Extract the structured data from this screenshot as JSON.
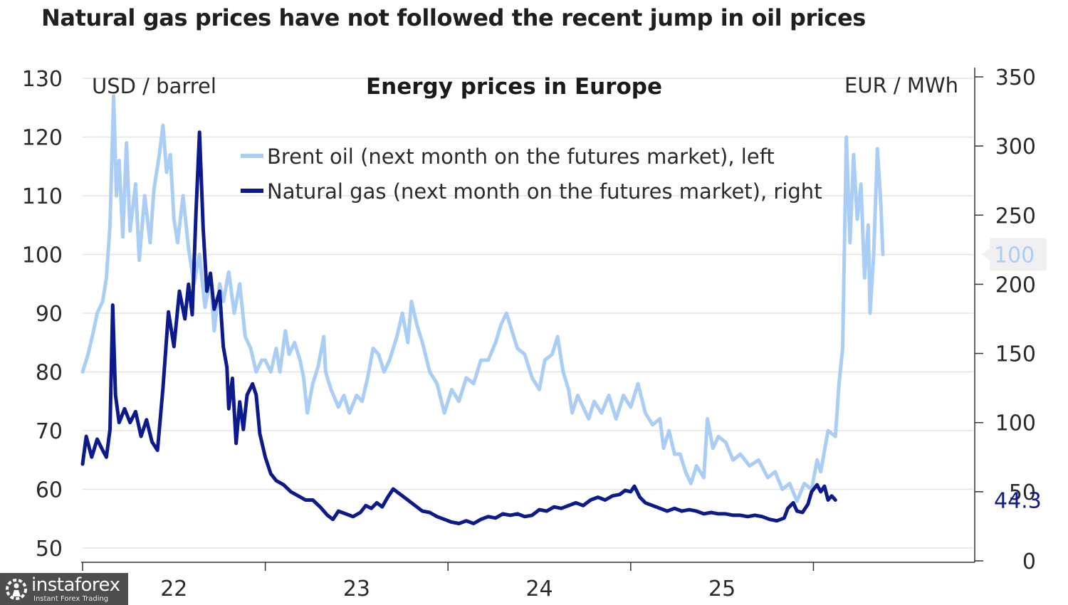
{
  "headline": "Natural gas prices have not followed the recent jump in oil prices",
  "chart_data": {
    "type": "line",
    "title": "Energy prices in Europe",
    "left_axis": {
      "label": "USD / barrel",
      "range": [
        50,
        130
      ],
      "ticks": [
        50,
        60,
        70,
        80,
        90,
        100,
        110,
        120,
        130
      ]
    },
    "right_axis": {
      "label": "EUR / MWh",
      "range": [
        0,
        350
      ],
      "ticks": [
        0,
        50,
        100,
        150,
        200,
        250,
        300,
        350
      ]
    },
    "x_axis": {
      "range": [
        2021.0,
        2025.875
      ],
      "ticks": [
        2021.0,
        2022.0,
        2023.0,
        2024.0,
        2025.0
      ],
      "labels": [
        {
          "x": 2021.5,
          "text": "22"
        },
        {
          "x": 2022.5,
          "text": "23"
        },
        {
          "x": 2023.5,
          "text": "24"
        },
        {
          "x": 2024.5,
          "text": "25"
        }
      ]
    },
    "gridlines": true,
    "legend_position": "top-center",
    "series": [
      {
        "name": "Brent oil (next month on the futures market), left",
        "axis": "left",
        "color": "#a9cdf5",
        "end_label": "100",
        "points": [
          [
            2021.0,
            80
          ],
          [
            2021.03,
            83
          ],
          [
            2021.06,
            87
          ],
          [
            2021.08,
            90
          ],
          [
            2021.11,
            92
          ],
          [
            2021.13,
            96
          ],
          [
            2021.15,
            105
          ],
          [
            2021.17,
            127
          ],
          [
            2021.185,
            110
          ],
          [
            2021.2,
            116
          ],
          [
            2021.22,
            103
          ],
          [
            2021.24,
            119
          ],
          [
            2021.26,
            104
          ],
          [
            2021.29,
            112
          ],
          [
            2021.31,
            99
          ],
          [
            2021.34,
            110
          ],
          [
            2021.37,
            102
          ],
          [
            2021.39,
            111
          ],
          [
            2021.42,
            117
          ],
          [
            2021.44,
            122
          ],
          [
            2021.46,
            114
          ],
          [
            2021.48,
            117
          ],
          [
            2021.5,
            106
          ],
          [
            2021.52,
            102
          ],
          [
            2021.55,
            110
          ],
          [
            2021.58,
            101
          ],
          [
            2021.61,
            95
          ],
          [
            2021.64,
            100
          ],
          [
            2021.67,
            91
          ],
          [
            2021.7,
            96
          ],
          [
            2021.72,
            87
          ],
          [
            2021.75,
            95
          ],
          [
            2021.77,
            92
          ],
          [
            2021.8,
            97
          ],
          [
            2021.83,
            90
          ],
          [
            2021.86,
            95
          ],
          [
            2021.89,
            86
          ],
          [
            2021.92,
            84
          ],
          [
            2021.95,
            80
          ],
          [
            2021.98,
            82
          ],
          [
            2022.0,
            82
          ],
          [
            2022.03,
            80
          ],
          [
            2022.06,
            84
          ],
          [
            2022.08,
            80
          ],
          [
            2022.11,
            87
          ],
          [
            2022.13,
            83
          ],
          [
            2022.16,
            85
          ],
          [
            2022.19,
            82
          ],
          [
            2022.21,
            79
          ],
          [
            2022.23,
            73
          ],
          [
            2022.26,
            78
          ],
          [
            2022.29,
            81
          ],
          [
            2022.32,
            86
          ],
          [
            2022.33,
            80
          ],
          [
            2022.36,
            77
          ],
          [
            2022.4,
            74
          ],
          [
            2022.43,
            76
          ],
          [
            2022.46,
            73
          ],
          [
            2022.5,
            76
          ],
          [
            2022.53,
            75
          ],
          [
            2022.56,
            79
          ],
          [
            2022.59,
            84
          ],
          [
            2022.62,
            83
          ],
          [
            2022.65,
            80
          ],
          [
            2022.68,
            82
          ],
          [
            2022.72,
            86
          ],
          [
            2022.75,
            90
          ],
          [
            2022.78,
            85
          ],
          [
            2022.8,
            92
          ],
          [
            2022.83,
            88
          ],
          [
            2022.86,
            85
          ],
          [
            2022.9,
            80
          ],
          [
            2022.94,
            78
          ],
          [
            2022.98,
            73
          ],
          [
            2023.02,
            77
          ],
          [
            2023.06,
            75
          ],
          [
            2023.1,
            79
          ],
          [
            2023.14,
            78
          ],
          [
            2023.18,
            82
          ],
          [
            2023.22,
            82
          ],
          [
            2023.26,
            85
          ],
          [
            2023.29,
            88
          ],
          [
            2023.32,
            90
          ],
          [
            2023.35,
            87
          ],
          [
            2023.38,
            84
          ],
          [
            2023.42,
            83
          ],
          [
            2023.46,
            79
          ],
          [
            2023.5,
            77
          ],
          [
            2023.53,
            82
          ],
          [
            2023.57,
            83
          ],
          [
            2023.6,
            86
          ],
          [
            2023.63,
            80
          ],
          [
            2023.66,
            77
          ],
          [
            2023.68,
            73
          ],
          [
            2023.71,
            76
          ],
          [
            2023.74,
            74
          ],
          [
            2023.77,
            72
          ],
          [
            2023.8,
            75
          ],
          [
            2023.84,
            73
          ],
          [
            2023.88,
            76
          ],
          [
            2023.92,
            72
          ],
          [
            2023.96,
            76
          ],
          [
            2024.0,
            74
          ],
          [
            2024.04,
            78
          ],
          [
            2024.08,
            73
          ],
          [
            2024.12,
            71
          ],
          [
            2024.16,
            72
          ],
          [
            2024.18,
            67
          ],
          [
            2024.21,
            70
          ],
          [
            2024.24,
            66
          ],
          [
            2024.27,
            66
          ],
          [
            2024.3,
            63
          ],
          [
            2024.33,
            61
          ],
          [
            2024.36,
            64
          ],
          [
            2024.4,
            62
          ],
          [
            2024.42,
            72
          ],
          [
            2024.45,
            67
          ],
          [
            2024.48,
            69
          ],
          [
            2024.52,
            68
          ],
          [
            2024.56,
            65
          ],
          [
            2024.6,
            66
          ],
          [
            2024.65,
            64
          ],
          [
            2024.7,
            65
          ],
          [
            2024.75,
            62
          ],
          [
            2024.79,
            63
          ],
          [
            2024.83,
            60
          ],
          [
            2024.87,
            61
          ],
          [
            2024.91,
            58
          ],
          [
            2024.95,
            61
          ],
          [
            2024.99,
            60
          ],
          [
            2025.02,
            65
          ],
          [
            2025.04,
            63
          ],
          [
            2025.08,
            70
          ],
          [
            2025.12,
            69
          ],
          [
            2025.14,
            78
          ],
          [
            2025.16,
            84
          ],
          [
            2025.18,
            120
          ],
          [
            2025.2,
            102
          ],
          [
            2025.22,
            117
          ],
          [
            2025.24,
            106
          ],
          [
            2025.26,
            112
          ],
          [
            2025.28,
            96
          ],
          [
            2025.3,
            105
          ],
          [
            2025.31,
            90
          ],
          [
            2025.33,
            100
          ],
          [
            2025.35,
            118
          ],
          [
            2025.37,
            108
          ],
          [
            2025.38,
            100
          ]
        ]
      },
      {
        "name": "Natural gas (next month on the futures market), right",
        "axis": "right",
        "color": "#0d1a8c",
        "end_label": "44.3",
        "points": [
          [
            2021.0,
            70
          ],
          [
            2021.02,
            90
          ],
          [
            2021.05,
            75
          ],
          [
            2021.08,
            88
          ],
          [
            2021.11,
            80
          ],
          [
            2021.13,
            75
          ],
          [
            2021.15,
            95
          ],
          [
            2021.165,
            185
          ],
          [
            2021.18,
            120
          ],
          [
            2021.2,
            100
          ],
          [
            2021.23,
            110
          ],
          [
            2021.26,
            100
          ],
          [
            2021.29,
            108
          ],
          [
            2021.32,
            90
          ],
          [
            2021.35,
            102
          ],
          [
            2021.38,
            86
          ],
          [
            2021.41,
            80
          ],
          [
            2021.44,
            125
          ],
          [
            2021.47,
            180
          ],
          [
            2021.5,
            155
          ],
          [
            2021.53,
            195
          ],
          [
            2021.56,
            175
          ],
          [
            2021.58,
            200
          ],
          [
            2021.6,
            178
          ],
          [
            2021.62,
            250
          ],
          [
            2021.64,
            310
          ],
          [
            2021.66,
            240
          ],
          [
            2021.68,
            195
          ],
          [
            2021.7,
            208
          ],
          [
            2021.72,
            182
          ],
          [
            2021.75,
            195
          ],
          [
            2021.77,
            155
          ],
          [
            2021.79,
            140
          ],
          [
            2021.8,
            110
          ],
          [
            2021.82,
            132
          ],
          [
            2021.84,
            85
          ],
          [
            2021.86,
            115
          ],
          [
            2021.88,
            95
          ],
          [
            2021.9,
            120
          ],
          [
            2021.93,
            128
          ],
          [
            2021.95,
            120
          ],
          [
            2021.97,
            92
          ],
          [
            2022.0,
            75
          ],
          [
            2022.03,
            63
          ],
          [
            2022.06,
            58
          ],
          [
            2022.1,
            55
          ],
          [
            2022.14,
            50
          ],
          [
            2022.18,
            47
          ],
          [
            2022.22,
            44
          ],
          [
            2022.26,
            44
          ],
          [
            2022.3,
            39
          ],
          [
            2022.34,
            33
          ],
          [
            2022.37,
            30
          ],
          [
            2022.4,
            36
          ],
          [
            2022.44,
            34
          ],
          [
            2022.48,
            32
          ],
          [
            2022.52,
            35
          ],
          [
            2022.55,
            40
          ],
          [
            2022.58,
            38
          ],
          [
            2022.61,
            42
          ],
          [
            2022.64,
            39
          ],
          [
            2022.67,
            46
          ],
          [
            2022.7,
            52
          ],
          [
            2022.74,
            48
          ],
          [
            2022.78,
            44
          ],
          [
            2022.82,
            40
          ],
          [
            2022.86,
            36
          ],
          [
            2022.9,
            35
          ],
          [
            2022.94,
            32
          ],
          [
            2022.98,
            30
          ],
          [
            2023.02,
            28
          ],
          [
            2023.06,
            27
          ],
          [
            2023.1,
            29
          ],
          [
            2023.14,
            27
          ],
          [
            2023.18,
            30
          ],
          [
            2023.22,
            32
          ],
          [
            2023.26,
            31
          ],
          [
            2023.3,
            34
          ],
          [
            2023.34,
            33
          ],
          [
            2023.38,
            34
          ],
          [
            2023.42,
            32
          ],
          [
            2023.46,
            33
          ],
          [
            2023.5,
            37
          ],
          [
            2023.54,
            36
          ],
          [
            2023.58,
            39
          ],
          [
            2023.62,
            38
          ],
          [
            2023.66,
            40
          ],
          [
            2023.7,
            42
          ],
          [
            2023.74,
            40
          ],
          [
            2023.78,
            44
          ],
          [
            2023.82,
            46
          ],
          [
            2023.86,
            44
          ],
          [
            2023.9,
            47
          ],
          [
            2023.94,
            48
          ],
          [
            2023.97,
            51
          ],
          [
            2024.0,
            50
          ],
          [
            2024.02,
            54
          ],
          [
            2024.05,
            46
          ],
          [
            2024.08,
            42
          ],
          [
            2024.12,
            40
          ],
          [
            2024.16,
            38
          ],
          [
            2024.2,
            36
          ],
          [
            2024.24,
            38
          ],
          [
            2024.28,
            36
          ],
          [
            2024.32,
            37
          ],
          [
            2024.36,
            36
          ],
          [
            2024.4,
            34
          ],
          [
            2024.44,
            35
          ],
          [
            2024.48,
            34
          ],
          [
            2024.52,
            34
          ],
          [
            2024.56,
            33
          ],
          [
            2024.6,
            33
          ],
          [
            2024.64,
            32
          ],
          [
            2024.68,
            33
          ],
          [
            2024.72,
            32
          ],
          [
            2024.76,
            30
          ],
          [
            2024.8,
            29
          ],
          [
            2024.84,
            31
          ],
          [
            2024.86,
            38
          ],
          [
            2024.89,
            42
          ],
          [
            2024.91,
            36
          ],
          [
            2024.94,
            35
          ],
          [
            2024.97,
            41
          ],
          [
            2024.99,
            50
          ],
          [
            2025.02,
            55
          ],
          [
            2025.04,
            50
          ],
          [
            2025.06,
            54
          ],
          [
            2025.08,
            44
          ],
          [
            2025.1,
            47
          ],
          [
            2025.12,
            44
          ]
        ]
      }
    ]
  },
  "watermark": {
    "name": "instaforex",
    "tagline": "Instant Forex Trading"
  }
}
